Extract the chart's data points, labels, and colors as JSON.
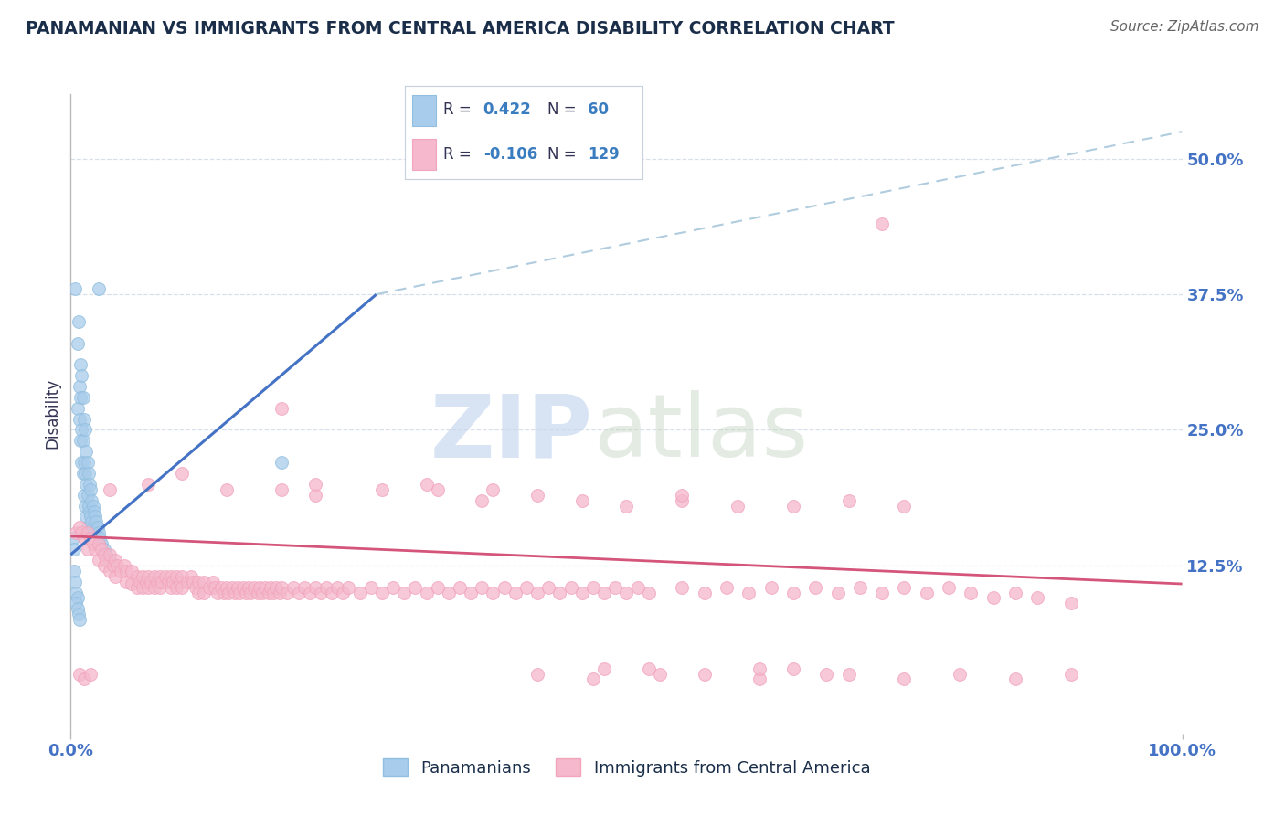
{
  "title": "PANAMANIAN VS IMMIGRANTS FROM CENTRAL AMERICA DISABILITY CORRELATION CHART",
  "source": "Source: ZipAtlas.com",
  "ylabel": "Disability",
  "xlabel": "",
  "watermark": "ZIPatlas",
  "xlim": [
    0.0,
    1.0
  ],
  "ylim": [
    -0.03,
    0.56
  ],
  "xtick_labels": [
    "0.0%",
    "100.0%"
  ],
  "ytick_labels": [
    "12.5%",
    "25.0%",
    "37.5%",
    "50.0%"
  ],
  "ytick_values": [
    0.125,
    0.25,
    0.375,
    0.5
  ],
  "legend_label1": "Panamanians",
  "legend_label2": "Immigrants from Central America",
  "color_blue": "#92BFDF",
  "color_pink": "#F2A5BC",
  "color_blue_fill": "#A8CCEB",
  "color_pink_fill": "#F5B8CC",
  "color_blue_line": "#4472C4",
  "color_pink_line": "#D4547A",
  "color_blue_dash": "#B0CCDF",
  "color_axis_text": "#4472C4",
  "color_grid": "#D5DCE8",
  "scatter_blue": [
    [
      0.004,
      0.38
    ],
    [
      0.006,
      0.33
    ],
    [
      0.006,
      0.27
    ],
    [
      0.007,
      0.35
    ],
    [
      0.008,
      0.29
    ],
    [
      0.008,
      0.26
    ],
    [
      0.009,
      0.31
    ],
    [
      0.009,
      0.28
    ],
    [
      0.009,
      0.24
    ],
    [
      0.01,
      0.3
    ],
    [
      0.01,
      0.25
    ],
    [
      0.01,
      0.22
    ],
    [
      0.011,
      0.28
    ],
    [
      0.011,
      0.24
    ],
    [
      0.011,
      0.21
    ],
    [
      0.012,
      0.26
    ],
    [
      0.012,
      0.22
    ],
    [
      0.012,
      0.19
    ],
    [
      0.013,
      0.25
    ],
    [
      0.013,
      0.21
    ],
    [
      0.013,
      0.18
    ],
    [
      0.014,
      0.23
    ],
    [
      0.014,
      0.2
    ],
    [
      0.014,
      0.17
    ],
    [
      0.015,
      0.22
    ],
    [
      0.015,
      0.19
    ],
    [
      0.015,
      0.16
    ],
    [
      0.016,
      0.21
    ],
    [
      0.016,
      0.18
    ],
    [
      0.016,
      0.155
    ],
    [
      0.017,
      0.2
    ],
    [
      0.017,
      0.175
    ],
    [
      0.018,
      0.195
    ],
    [
      0.018,
      0.17
    ],
    [
      0.019,
      0.185
    ],
    [
      0.019,
      0.165
    ],
    [
      0.02,
      0.18
    ],
    [
      0.02,
      0.16
    ],
    [
      0.021,
      0.175
    ],
    [
      0.022,
      0.17
    ],
    [
      0.023,
      0.165
    ],
    [
      0.024,
      0.16
    ],
    [
      0.025,
      0.155
    ],
    [
      0.026,
      0.15
    ],
    [
      0.028,
      0.145
    ],
    [
      0.03,
      0.14
    ],
    [
      0.032,
      0.135
    ],
    [
      0.035,
      0.13
    ],
    [
      0.002,
      0.15
    ],
    [
      0.003,
      0.14
    ],
    [
      0.003,
      0.12
    ],
    [
      0.004,
      0.11
    ],
    [
      0.005,
      0.1
    ],
    [
      0.006,
      0.095
    ],
    [
      0.005,
      0.09
    ],
    [
      0.006,
      0.085
    ],
    [
      0.007,
      0.08
    ],
    [
      0.008,
      0.075
    ],
    [
      0.025,
      0.38
    ],
    [
      0.19,
      0.22
    ]
  ],
  "scatter_pink": [
    [
      0.005,
      0.155
    ],
    [
      0.008,
      0.16
    ],
    [
      0.01,
      0.155
    ],
    [
      0.012,
      0.15
    ],
    [
      0.015,
      0.155
    ],
    [
      0.015,
      0.14
    ],
    [
      0.018,
      0.15
    ],
    [
      0.02,
      0.145
    ],
    [
      0.022,
      0.14
    ],
    [
      0.025,
      0.145
    ],
    [
      0.025,
      0.13
    ],
    [
      0.028,
      0.14
    ],
    [
      0.03,
      0.135
    ],
    [
      0.03,
      0.125
    ],
    [
      0.032,
      0.13
    ],
    [
      0.035,
      0.135
    ],
    [
      0.035,
      0.12
    ],
    [
      0.038,
      0.125
    ],
    [
      0.04,
      0.13
    ],
    [
      0.04,
      0.115
    ],
    [
      0.042,
      0.125
    ],
    [
      0.045,
      0.12
    ],
    [
      0.048,
      0.125
    ],
    [
      0.05,
      0.12
    ],
    [
      0.05,
      0.11
    ],
    [
      0.055,
      0.12
    ],
    [
      0.055,
      0.108
    ],
    [
      0.06,
      0.115
    ],
    [
      0.06,
      0.105
    ],
    [
      0.062,
      0.11
    ],
    [
      0.065,
      0.115
    ],
    [
      0.065,
      0.105
    ],
    [
      0.068,
      0.11
    ],
    [
      0.07,
      0.115
    ],
    [
      0.07,
      0.105
    ],
    [
      0.072,
      0.11
    ],
    [
      0.075,
      0.115
    ],
    [
      0.075,
      0.105
    ],
    [
      0.078,
      0.11
    ],
    [
      0.08,
      0.115
    ],
    [
      0.08,
      0.105
    ],
    [
      0.082,
      0.11
    ],
    [
      0.085,
      0.115
    ],
    [
      0.088,
      0.11
    ],
    [
      0.09,
      0.115
    ],
    [
      0.09,
      0.105
    ],
    [
      0.092,
      0.11
    ],
    [
      0.095,
      0.115
    ],
    [
      0.095,
      0.105
    ],
    [
      0.098,
      0.11
    ],
    [
      0.1,
      0.115
    ],
    [
      0.1,
      0.105
    ],
    [
      0.105,
      0.11
    ],
    [
      0.108,
      0.115
    ],
    [
      0.11,
      0.11
    ],
    [
      0.112,
      0.105
    ],
    [
      0.115,
      0.11
    ],
    [
      0.115,
      0.1
    ],
    [
      0.12,
      0.11
    ],
    [
      0.12,
      0.1
    ],
    [
      0.125,
      0.105
    ],
    [
      0.128,
      0.11
    ],
    [
      0.13,
      0.105
    ],
    [
      0.132,
      0.1
    ],
    [
      0.135,
      0.105
    ],
    [
      0.138,
      0.1
    ],
    [
      0.14,
      0.105
    ],
    [
      0.142,
      0.1
    ],
    [
      0.145,
      0.105
    ],
    [
      0.148,
      0.1
    ],
    [
      0.15,
      0.105
    ],
    [
      0.152,
      0.1
    ],
    [
      0.155,
      0.105
    ],
    [
      0.158,
      0.1
    ],
    [
      0.16,
      0.105
    ],
    [
      0.162,
      0.1
    ],
    [
      0.165,
      0.105
    ],
    [
      0.168,
      0.1
    ],
    [
      0.17,
      0.105
    ],
    [
      0.172,
      0.1
    ],
    [
      0.175,
      0.105
    ],
    [
      0.178,
      0.1
    ],
    [
      0.18,
      0.105
    ],
    [
      0.182,
      0.1
    ],
    [
      0.185,
      0.105
    ],
    [
      0.188,
      0.1
    ],
    [
      0.19,
      0.105
    ],
    [
      0.195,
      0.1
    ],
    [
      0.2,
      0.105
    ],
    [
      0.205,
      0.1
    ],
    [
      0.21,
      0.105
    ],
    [
      0.215,
      0.1
    ],
    [
      0.22,
      0.105
    ],
    [
      0.225,
      0.1
    ],
    [
      0.23,
      0.105
    ],
    [
      0.235,
      0.1
    ],
    [
      0.24,
      0.105
    ],
    [
      0.245,
      0.1
    ],
    [
      0.25,
      0.105
    ],
    [
      0.26,
      0.1
    ],
    [
      0.27,
      0.105
    ],
    [
      0.28,
      0.1
    ],
    [
      0.29,
      0.105
    ],
    [
      0.3,
      0.1
    ],
    [
      0.31,
      0.105
    ],
    [
      0.32,
      0.1
    ],
    [
      0.33,
      0.105
    ],
    [
      0.34,
      0.1
    ],
    [
      0.35,
      0.105
    ],
    [
      0.36,
      0.1
    ],
    [
      0.37,
      0.105
    ],
    [
      0.38,
      0.1
    ],
    [
      0.39,
      0.105
    ],
    [
      0.4,
      0.1
    ],
    [
      0.41,
      0.105
    ],
    [
      0.42,
      0.1
    ],
    [
      0.43,
      0.105
    ],
    [
      0.44,
      0.1
    ],
    [
      0.45,
      0.105
    ],
    [
      0.46,
      0.1
    ],
    [
      0.47,
      0.105
    ],
    [
      0.48,
      0.1
    ],
    [
      0.49,
      0.105
    ],
    [
      0.5,
      0.1
    ],
    [
      0.51,
      0.105
    ],
    [
      0.52,
      0.1
    ],
    [
      0.55,
      0.105
    ],
    [
      0.57,
      0.1
    ],
    [
      0.59,
      0.105
    ],
    [
      0.61,
      0.1
    ],
    [
      0.63,
      0.105
    ],
    [
      0.65,
      0.1
    ],
    [
      0.67,
      0.105
    ],
    [
      0.69,
      0.1
    ],
    [
      0.71,
      0.105
    ],
    [
      0.73,
      0.1
    ],
    [
      0.75,
      0.105
    ],
    [
      0.77,
      0.1
    ],
    [
      0.79,
      0.105
    ],
    [
      0.81,
      0.1
    ],
    [
      0.83,
      0.095
    ],
    [
      0.85,
      0.1
    ],
    [
      0.87,
      0.095
    ],
    [
      0.9,
      0.09
    ],
    [
      0.035,
      0.195
    ],
    [
      0.07,
      0.2
    ],
    [
      0.1,
      0.21
    ],
    [
      0.14,
      0.195
    ],
    [
      0.19,
      0.195
    ],
    [
      0.22,
      0.19
    ],
    [
      0.28,
      0.195
    ],
    [
      0.33,
      0.195
    ],
    [
      0.37,
      0.185
    ],
    [
      0.42,
      0.19
    ],
    [
      0.46,
      0.185
    ],
    [
      0.5,
      0.18
    ],
    [
      0.55,
      0.185
    ],
    [
      0.6,
      0.18
    ],
    [
      0.65,
      0.18
    ],
    [
      0.7,
      0.185
    ],
    [
      0.75,
      0.18
    ],
    [
      0.42,
      0.025
    ],
    [
      0.47,
      0.02
    ],
    [
      0.52,
      0.03
    ],
    [
      0.57,
      0.025
    ],
    [
      0.62,
      0.02
    ],
    [
      0.65,
      0.03
    ],
    [
      0.7,
      0.025
    ],
    [
      0.75,
      0.02
    ],
    [
      0.8,
      0.025
    ],
    [
      0.85,
      0.02
    ],
    [
      0.9,
      0.025
    ],
    [
      0.008,
      0.025
    ],
    [
      0.012,
      0.02
    ],
    [
      0.018,
      0.025
    ],
    [
      0.48,
      0.03
    ],
    [
      0.53,
      0.025
    ],
    [
      0.62,
      0.03
    ],
    [
      0.68,
      0.025
    ],
    [
      0.73,
      0.44
    ],
    [
      0.19,
      0.27
    ],
    [
      0.22,
      0.2
    ],
    [
      0.32,
      0.2
    ],
    [
      0.38,
      0.195
    ],
    [
      0.55,
      0.19
    ]
  ],
  "blue_line_x": [
    0.0,
    0.275
  ],
  "blue_line_y": [
    0.135,
    0.375
  ],
  "pink_line_x": [
    0.0,
    1.0
  ],
  "pink_line_y": [
    0.152,
    0.108
  ],
  "dash_line_x": [
    0.275,
    1.0
  ],
  "dash_line_y": [
    0.375,
    0.525
  ],
  "background_color": "#FFFFFF",
  "title_color": "#1A2E4A",
  "source_color": "#666666",
  "title_fontsize": 13.5,
  "source_fontsize": 11
}
